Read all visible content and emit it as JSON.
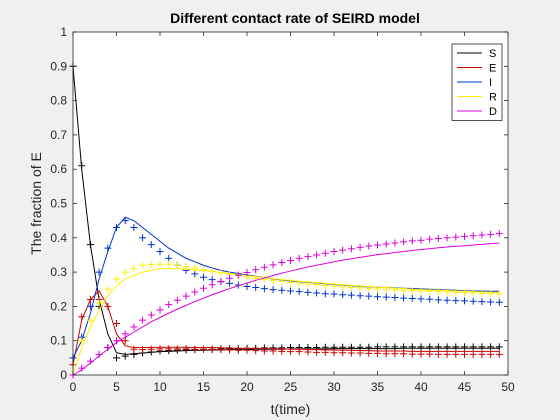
{
  "chart_data": {
    "type": "line",
    "title": "Different contact rate of SEIRD model",
    "xlabel": "t(time)",
    "ylabel": "The fraction of E",
    "xlim": [
      0,
      50
    ],
    "ylim": [
      0,
      1
    ],
    "xticks": [
      0,
      5,
      10,
      15,
      20,
      25,
      30,
      35,
      40,
      45,
      50
    ],
    "yticks": [
      0,
      0.1,
      0.2,
      0.3,
      0.4,
      0.5,
      0.6,
      0.7,
      0.8,
      0.9,
      1
    ],
    "grid": false,
    "legend_position": "top-right",
    "x": [
      0,
      1,
      2,
      3,
      4,
      5,
      6,
      7,
      8,
      9,
      10,
      11,
      12,
      13,
      14,
      15,
      16,
      17,
      18,
      19,
      20,
      21,
      22,
      23,
      24,
      25,
      26,
      27,
      28,
      29,
      30,
      31,
      32,
      33,
      34,
      35,
      36,
      37,
      38,
      39,
      40,
      41,
      42,
      43,
      44,
      45,
      46,
      47,
      48,
      49
    ],
    "series": [
      {
        "name": "S",
        "color": "#000000",
        "line": [
          0.9,
          0.6,
          0.38,
          0.22,
          0.12,
          0.065,
          0.06,
          0.062,
          0.064,
          0.066,
          0.068,
          0.069,
          0.07,
          0.071,
          0.072,
          0.072,
          0.073,
          0.073,
          0.074,
          0.074,
          0.074,
          0.075,
          0.075,
          0.075,
          0.075,
          0.076,
          0.076,
          0.076,
          0.076,
          0.076,
          0.077,
          0.077,
          0.077,
          0.077,
          0.077,
          0.077,
          0.077,
          0.077,
          0.078,
          0.078,
          0.078,
          0.078,
          0.078,
          0.078,
          0.078,
          0.078,
          0.078,
          0.078,
          0.078,
          0.078
        ],
        "markers": [
          0.9,
          0.61,
          0.38,
          0.2,
          0.08,
          0.05,
          0.055,
          0.06,
          0.064,
          0.067,
          0.07,
          0.071,
          0.072,
          0.073,
          0.074,
          0.075,
          0.075,
          0.076,
          0.077,
          0.077,
          0.078,
          0.078,
          0.079,
          0.079,
          0.079,
          0.08,
          0.08,
          0.08,
          0.08,
          0.081,
          0.081,
          0.081,
          0.081,
          0.081,
          0.081,
          0.082,
          0.082,
          0.082,
          0.082,
          0.082,
          0.082,
          0.082,
          0.082,
          0.082,
          0.082,
          0.082,
          0.082,
          0.082,
          0.082,
          0.082
        ]
      },
      {
        "name": "E",
        "color": "#cc0000",
        "line": [
          0.03,
          0.16,
          0.22,
          0.245,
          0.2,
          0.12,
          0.085,
          0.08,
          0.08,
          0.08,
          0.081,
          0.081,
          0.081,
          0.081,
          0.08,
          0.08,
          0.08,
          0.079,
          0.079,
          0.078,
          0.078,
          0.077,
          0.077,
          0.076,
          0.076,
          0.075,
          0.075,
          0.074,
          0.074,
          0.073,
          0.073,
          0.072,
          0.072,
          0.071,
          0.071,
          0.07,
          0.07,
          0.07,
          0.07,
          0.069,
          0.069,
          0.069,
          0.069,
          0.069,
          0.069,
          0.069,
          0.069,
          0.069,
          0.069,
          0.069
        ],
        "markers": [
          0.03,
          0.17,
          0.22,
          0.22,
          0.2,
          0.15,
          0.1,
          0.075,
          0.074,
          0.075,
          0.076,
          0.076,
          0.076,
          0.076,
          0.075,
          0.075,
          0.074,
          0.074,
          0.073,
          0.072,
          0.072,
          0.071,
          0.07,
          0.07,
          0.069,
          0.068,
          0.068,
          0.067,
          0.066,
          0.066,
          0.065,
          0.065,
          0.064,
          0.064,
          0.063,
          0.063,
          0.062,
          0.062,
          0.062,
          0.061,
          0.061,
          0.061,
          0.06,
          0.06,
          0.06,
          0.06,
          0.06,
          0.06,
          0.06,
          0.06
        ]
      },
      {
        "name": "I",
        "color": "#0033cc",
        "line": [
          0.05,
          0.1,
          0.18,
          0.28,
          0.36,
          0.43,
          0.46,
          0.45,
          0.43,
          0.41,
          0.39,
          0.37,
          0.355,
          0.34,
          0.33,
          0.32,
          0.312,
          0.305,
          0.3,
          0.296,
          0.292,
          0.288,
          0.284,
          0.28,
          0.277,
          0.274,
          0.272,
          0.27,
          0.268,
          0.266,
          0.264,
          0.262,
          0.26,
          0.258,
          0.257,
          0.256,
          0.255,
          0.254,
          0.253,
          0.252,
          0.251,
          0.25,
          0.249,
          0.248,
          0.247,
          0.246,
          0.245,
          0.245,
          0.244,
          0.244
        ],
        "markers": [
          0.05,
          0.11,
          0.2,
          0.3,
          0.37,
          0.43,
          0.45,
          0.43,
          0.4,
          0.38,
          0.36,
          0.34,
          0.32,
          0.305,
          0.295,
          0.285,
          0.278,
          0.272,
          0.267,
          0.262,
          0.258,
          0.255,
          0.252,
          0.249,
          0.247,
          0.245,
          0.243,
          0.241,
          0.239,
          0.237,
          0.236,
          0.234,
          0.233,
          0.231,
          0.23,
          0.228,
          0.227,
          0.226,
          0.224,
          0.223,
          0.222,
          0.221,
          0.219,
          0.218,
          0.217,
          0.216,
          0.215,
          0.214,
          0.213,
          0.212
        ]
      },
      {
        "name": "R",
        "color": "#ffee00",
        "line": [
          0.0,
          0.08,
          0.14,
          0.19,
          0.23,
          0.26,
          0.28,
          0.29,
          0.3,
          0.305,
          0.31,
          0.31,
          0.31,
          0.309,
          0.307,
          0.305,
          0.302,
          0.299,
          0.296,
          0.293,
          0.29,
          0.287,
          0.284,
          0.281,
          0.278,
          0.276,
          0.273,
          0.271,
          0.269,
          0.267,
          0.265,
          0.263,
          0.261,
          0.259,
          0.258,
          0.256,
          0.255,
          0.253,
          0.252,
          0.25,
          0.249,
          0.248,
          0.247,
          0.246,
          0.245,
          0.244,
          0.243,
          0.242,
          0.241,
          0.24
        ],
        "markers": [
          0.0,
          0.1,
          0.16,
          0.21,
          0.25,
          0.28,
          0.3,
          0.31,
          0.32,
          0.322,
          0.323,
          0.323,
          0.32,
          0.316,
          0.312,
          0.307,
          0.302,
          0.298,
          0.294,
          0.29,
          0.286,
          0.282,
          0.279,
          0.276,
          0.273,
          0.27,
          0.268,
          0.265,
          0.263,
          0.261,
          0.259,
          0.257,
          0.255,
          0.254,
          0.252,
          0.251,
          0.249,
          0.248,
          0.247,
          0.246,
          0.245,
          0.244,
          0.243,
          0.242,
          0.241,
          0.24,
          0.239,
          0.238,
          0.237,
          0.236
        ]
      },
      {
        "name": "D",
        "color": "#dd00dd",
        "line": [
          0.0,
          0.015,
          0.035,
          0.055,
          0.075,
          0.095,
          0.11,
          0.125,
          0.14,
          0.155,
          0.168,
          0.18,
          0.192,
          0.203,
          0.214,
          0.224,
          0.234,
          0.243,
          0.252,
          0.26,
          0.268,
          0.276,
          0.283,
          0.29,
          0.297,
          0.303,
          0.309,
          0.315,
          0.32,
          0.325,
          0.33,
          0.335,
          0.339,
          0.343,
          0.347,
          0.351,
          0.354,
          0.357,
          0.36,
          0.363,
          0.366,
          0.368,
          0.371,
          0.373,
          0.375,
          0.377,
          0.379,
          0.381,
          0.383,
          0.385
        ],
        "markers": [
          0.0,
          0.02,
          0.04,
          0.06,
          0.08,
          0.1,
          0.12,
          0.14,
          0.16,
          0.175,
          0.19,
          0.205,
          0.218,
          0.23,
          0.242,
          0.253,
          0.263,
          0.273,
          0.282,
          0.291,
          0.299,
          0.307,
          0.314,
          0.321,
          0.328,
          0.334,
          0.34,
          0.345,
          0.35,
          0.355,
          0.36,
          0.364,
          0.368,
          0.372,
          0.376,
          0.379,
          0.382,
          0.385,
          0.388,
          0.391,
          0.393,
          0.396,
          0.398,
          0.4,
          0.402,
          0.404,
          0.406,
          0.408,
          0.41,
          0.412
        ]
      }
    ]
  }
}
